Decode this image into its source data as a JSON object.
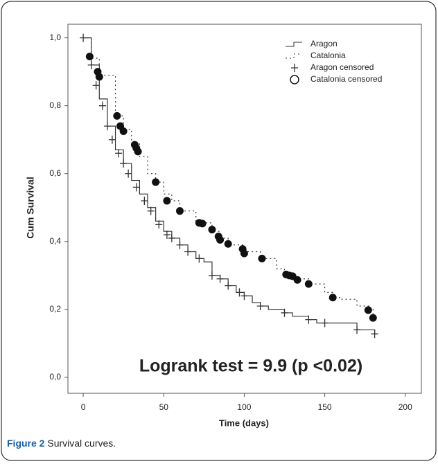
{
  "chart_data": {
    "type": "line",
    "step": true,
    "y_label": "Cum Survival",
    "x_label": "Time (days)",
    "annotation": "Logrank test = 9.9 (p <0.02)",
    "xlim": [
      -9.5,
      210
    ],
    "ylim": [
      -0.047,
      1.04
    ],
    "xticks": [
      0,
      50,
      100,
      150,
      200
    ],
    "yticks": [
      {
        "value": 0,
        "label": "0,0"
      },
      {
        "value": 0.2,
        "label": "0,2"
      },
      {
        "value": 0.4,
        "label": "0,4"
      },
      {
        "value": 0.6,
        "label": "0,6"
      },
      {
        "value": 0.8,
        "label": "0,8"
      },
      {
        "value": 1,
        "label": "1,0"
      }
    ],
    "series": [
      {
        "name": "Aragon",
        "color": "#333333",
        "style": "solid",
        "x": [
          0,
          5,
          10,
          15,
          20,
          25,
          30,
          35,
          40,
          45,
          50,
          55,
          60,
          65,
          70,
          75,
          80,
          85,
          90,
          95,
          100,
          105,
          110,
          115,
          125,
          130,
          140,
          145,
          170,
          181
        ],
        "values": [
          1.0,
          0.92,
          0.82,
          0.74,
          0.67,
          0.63,
          0.58,
          0.54,
          0.5,
          0.46,
          0.43,
          0.41,
          0.39,
          0.37,
          0.35,
          0.34,
          0.3,
          0.29,
          0.27,
          0.25,
          0.24,
          0.22,
          0.21,
          0.2,
          0.19,
          0.18,
          0.17,
          0.16,
          0.14,
          0.128
        ]
      },
      {
        "name": "Catalonia",
        "color": "#333333",
        "style": "dotted",
        "x": [
          0,
          5,
          10,
          20,
          25,
          30,
          35,
          40,
          45,
          50,
          55,
          60,
          70,
          75,
          80,
          85,
          90,
          100,
          110,
          120,
          125,
          130,
          140,
          150,
          155,
          160,
          170,
          178,
          180
        ],
        "values": [
          1.0,
          0.94,
          0.89,
          0.77,
          0.73,
          0.69,
          0.65,
          0.6,
          0.575,
          0.54,
          0.52,
          0.49,
          0.46,
          0.455,
          0.43,
          0.41,
          0.39,
          0.37,
          0.35,
          0.32,
          0.3,
          0.29,
          0.275,
          0.25,
          0.235,
          0.23,
          0.21,
          0.2,
          0.175
        ]
      },
      {
        "name": "Aragon censored",
        "color": "#333333",
        "marker": "plus",
        "x": [
          0,
          5,
          8,
          12,
          15,
          18,
          22,
          25,
          28,
          33,
          38,
          42,
          47,
          52,
          55,
          60,
          65,
          72,
          80,
          85,
          90,
          97,
          100,
          110,
          125,
          140,
          150,
          170,
          181
        ],
        "values": [
          1.0,
          0.92,
          0.86,
          0.8,
          0.74,
          0.7,
          0.66,
          0.63,
          0.6,
          0.56,
          0.52,
          0.49,
          0.45,
          0.42,
          0.41,
          0.39,
          0.37,
          0.35,
          0.3,
          0.29,
          0.27,
          0.25,
          0.24,
          0.21,
          0.19,
          0.17,
          0.16,
          0.14,
          0.128
        ]
      },
      {
        "name": "Catalonia censored",
        "color": "#111111",
        "marker": "circle",
        "x": [
          4,
          9,
          10,
          21,
          23,
          25,
          32,
          33,
          34,
          45,
          52,
          60,
          72,
          74,
          80,
          84,
          85,
          90,
          99,
          100,
          111,
          126,
          128,
          130,
          133,
          140,
          155,
          177,
          180
        ],
        "values": [
          0.945,
          0.9,
          0.885,
          0.77,
          0.74,
          0.725,
          0.685,
          0.675,
          0.665,
          0.575,
          0.52,
          0.49,
          0.455,
          0.453,
          0.435,
          0.415,
          0.405,
          0.393,
          0.378,
          0.365,
          0.35,
          0.303,
          0.3,
          0.298,
          0.287,
          0.275,
          0.235,
          0.198,
          0.175
        ]
      }
    ]
  },
  "figure": {
    "label": "Figure 2",
    "text": "Survival curves."
  }
}
